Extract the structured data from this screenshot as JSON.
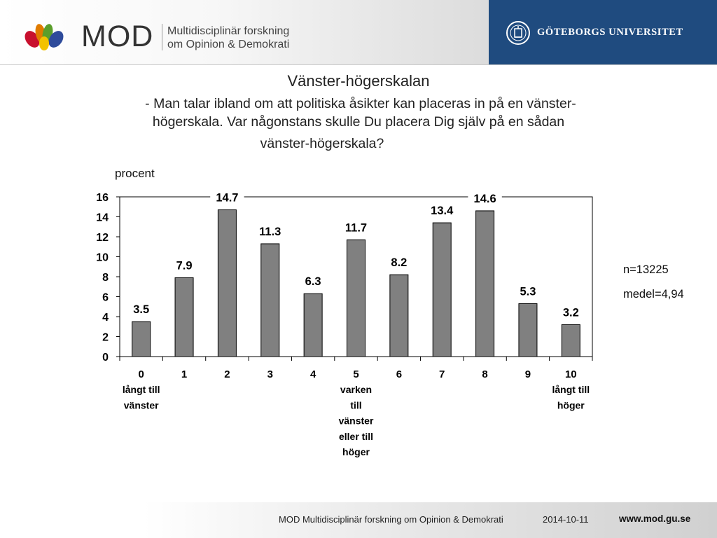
{
  "header": {
    "brand": "MOD",
    "subtitle_line1": "Multidisciplinär forskning",
    "subtitle_line2": "om Opinion & Demokrati",
    "university": "GÖTEBORGS UNIVERSITET",
    "university_color": "#1f4b7f"
  },
  "slide": {
    "title": "Vänster-högerskalan",
    "question_line1": "- Man talar ibland om att politiska åsikter kan placeras in på en vänster-",
    "question_line2": "högerskala. Var någonstans skulle Du placera Dig själv på en sådan",
    "question_line3": "vänster-högerskala?"
  },
  "stats": {
    "n": "n=13225",
    "mean": "medel=4,94"
  },
  "chart_data": {
    "type": "bar",
    "ylabel": "procent",
    "ylim": [
      0,
      16
    ],
    "yticks": [
      0,
      2,
      4,
      6,
      8,
      10,
      12,
      14,
      16
    ],
    "grid": false,
    "bar_color": "#808080",
    "categories": [
      "0",
      "1",
      "2",
      "3",
      "4",
      "5",
      "6",
      "7",
      "8",
      "9",
      "10"
    ],
    "category_sublabels": {
      "0": [
        "långt till",
        "vänster"
      ],
      "5": [
        "varken",
        "till",
        "vänster",
        "eller till",
        "höger"
      ],
      "10": [
        "långt till",
        "höger"
      ]
    },
    "values": [
      3.5,
      7.9,
      14.7,
      11.3,
      6.3,
      11.7,
      8.2,
      13.4,
      14.6,
      5.3,
      3.2
    ],
    "data_labels": [
      "3.5",
      "7.9",
      "14.7",
      "11.3",
      "6.3",
      "11.7",
      "8.2",
      "13.4",
      "14.6",
      "5.3",
      "3.2"
    ]
  },
  "footer": {
    "org": "MOD Multidisciplinär forskning om Opinion & Demokrati",
    "date": "2014-10-11",
    "url": "www.mod.gu.se"
  }
}
